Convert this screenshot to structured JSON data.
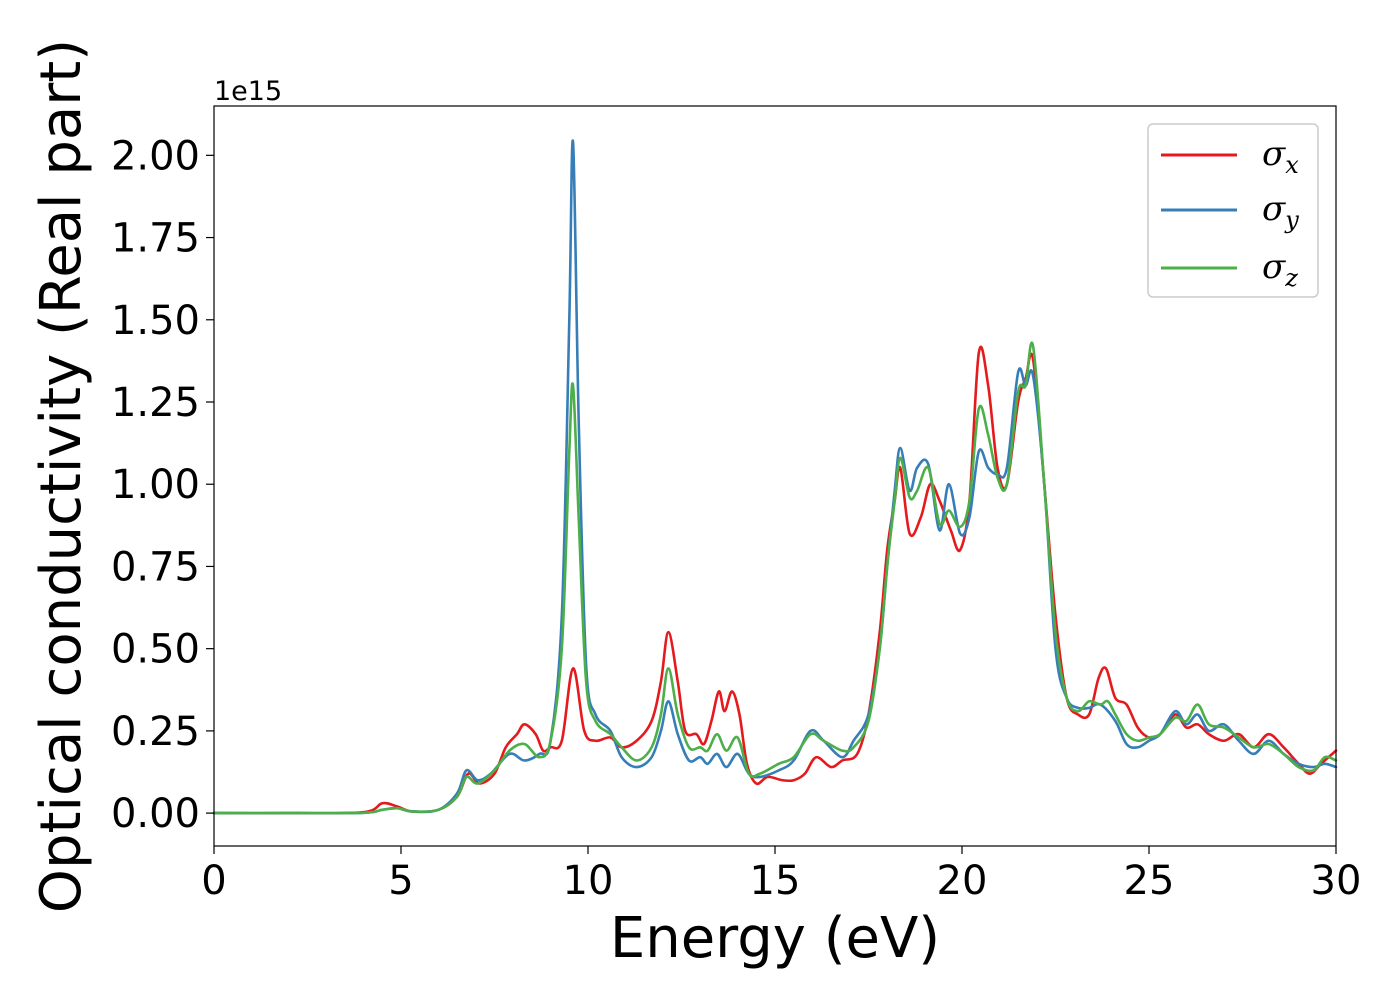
{
  "chart_data": {
    "type": "line",
    "title": "",
    "xlabel": "Energy (eV)",
    "ylabel": "Optical conductivity (Real part)",
    "y_offset_label": "1e15",
    "xlim": [
      0,
      30
    ],
    "ylim": [
      -0.1,
      2.15
    ],
    "x_ticks": [
      0,
      5,
      10,
      15,
      20,
      25,
      30
    ],
    "x_tick_labels": [
      "0",
      "5",
      "10",
      "15",
      "20",
      "25",
      "30"
    ],
    "y_ticks": [
      0,
      0.25,
      0.5,
      0.75,
      1.0,
      1.25,
      1.5,
      1.75,
      2.0
    ],
    "y_tick_labels": [
      "0.00",
      "0.25",
      "0.50",
      "0.75",
      "1.00",
      "1.25",
      "1.50",
      "1.75",
      "2.00"
    ],
    "grid": false,
    "legend_position": "top-right",
    "series": [
      {
        "name": "σx",
        "symbol": "σ",
        "subscript": "x",
        "color": "#e41a1c",
        "points": [
          [
            0,
            0
          ],
          [
            2,
            0
          ],
          [
            4,
            0.003
          ],
          [
            4.5,
            0.03
          ],
          [
            4.9,
            0.02
          ],
          [
            5.3,
            0.005
          ],
          [
            6,
            0.01
          ],
          [
            6.5,
            0.05
          ],
          [
            6.8,
            0.12
          ],
          [
            7.1,
            0.09
          ],
          [
            7.5,
            0.12
          ],
          [
            7.8,
            0.2
          ],
          [
            8.1,
            0.24
          ],
          [
            8.3,
            0.27
          ],
          [
            8.6,
            0.24
          ],
          [
            8.8,
            0.19
          ],
          [
            9.0,
            0.2
          ],
          [
            9.3,
            0.22
          ],
          [
            9.6,
            0.44
          ],
          [
            9.9,
            0.25
          ],
          [
            10.2,
            0.22
          ],
          [
            10.6,
            0.23
          ],
          [
            10.9,
            0.2
          ],
          [
            11.3,
            0.22
          ],
          [
            11.7,
            0.28
          ],
          [
            11.95,
            0.4
          ],
          [
            12.15,
            0.55
          ],
          [
            12.4,
            0.4
          ],
          [
            12.6,
            0.25
          ],
          [
            12.9,
            0.24
          ],
          [
            13.1,
            0.21
          ],
          [
            13.3,
            0.28
          ],
          [
            13.5,
            0.37
          ],
          [
            13.65,
            0.31
          ],
          [
            13.85,
            0.37
          ],
          [
            14.05,
            0.3
          ],
          [
            14.25,
            0.15
          ],
          [
            14.5,
            0.09
          ],
          [
            14.8,
            0.11
          ],
          [
            15.2,
            0.1
          ],
          [
            15.5,
            0.1
          ],
          [
            15.8,
            0.12
          ],
          [
            16.1,
            0.17
          ],
          [
            16.5,
            0.14
          ],
          [
            16.8,
            0.16
          ],
          [
            17.2,
            0.18
          ],
          [
            17.5,
            0.3
          ],
          [
            17.8,
            0.55
          ],
          [
            18.0,
            0.8
          ],
          [
            18.2,
            0.95
          ],
          [
            18.35,
            1.05
          ],
          [
            18.6,
            0.85
          ],
          [
            18.9,
            0.9
          ],
          [
            19.15,
            1.0
          ],
          [
            19.4,
            0.95
          ],
          [
            19.7,
            0.86
          ],
          [
            19.95,
            0.8
          ],
          [
            20.2,
            0.95
          ],
          [
            20.45,
            1.4
          ],
          [
            20.7,
            1.3
          ],
          [
            20.95,
            1.05
          ],
          [
            21.2,
            1.0
          ],
          [
            21.5,
            1.25
          ],
          [
            21.7,
            1.32
          ],
          [
            21.9,
            1.38
          ],
          [
            22.2,
            1.0
          ],
          [
            22.5,
            0.6
          ],
          [
            22.8,
            0.35
          ],
          [
            23.1,
            0.3
          ],
          [
            23.4,
            0.3
          ],
          [
            23.65,
            0.41
          ],
          [
            23.85,
            0.44
          ],
          [
            24.1,
            0.35
          ],
          [
            24.4,
            0.33
          ],
          [
            24.7,
            0.26
          ],
          [
            25.0,
            0.23
          ],
          [
            25.3,
            0.24
          ],
          [
            25.7,
            0.3
          ],
          [
            26.0,
            0.26
          ],
          [
            26.3,
            0.27
          ],
          [
            26.6,
            0.24
          ],
          [
            27.0,
            0.22
          ],
          [
            27.4,
            0.24
          ],
          [
            27.8,
            0.2
          ],
          [
            28.2,
            0.24
          ],
          [
            28.6,
            0.2
          ],
          [
            29.0,
            0.15
          ],
          [
            29.3,
            0.12
          ],
          [
            29.6,
            0.15
          ],
          [
            30.0,
            0.19
          ]
        ]
      },
      {
        "name": "σy",
        "symbol": "σ",
        "subscript": "y",
        "color": "#377eb8",
        "points": [
          [
            0,
            0
          ],
          [
            2,
            0
          ],
          [
            4,
            0.001
          ],
          [
            4.5,
            0.01
          ],
          [
            4.9,
            0.015
          ],
          [
            5.3,
            0.005
          ],
          [
            6,
            0.01
          ],
          [
            6.5,
            0.06
          ],
          [
            6.75,
            0.13
          ],
          [
            7.05,
            0.1
          ],
          [
            7.4,
            0.12
          ],
          [
            7.9,
            0.18
          ],
          [
            8.3,
            0.16
          ],
          [
            8.7,
            0.18
          ],
          [
            9.0,
            0.22
          ],
          [
            9.3,
            0.6
          ],
          [
            9.5,
            1.5
          ],
          [
            9.6,
            2.04
          ],
          [
            9.75,
            1.2
          ],
          [
            9.95,
            0.45
          ],
          [
            10.2,
            0.3
          ],
          [
            10.6,
            0.25
          ],
          [
            10.9,
            0.17
          ],
          [
            11.3,
            0.14
          ],
          [
            11.7,
            0.17
          ],
          [
            11.95,
            0.25
          ],
          [
            12.15,
            0.34
          ],
          [
            12.4,
            0.24
          ],
          [
            12.7,
            0.16
          ],
          [
            13.0,
            0.17
          ],
          [
            13.2,
            0.15
          ],
          [
            13.45,
            0.18
          ],
          [
            13.7,
            0.14
          ],
          [
            14.0,
            0.18
          ],
          [
            14.3,
            0.12
          ],
          [
            14.6,
            0.11
          ],
          [
            15.1,
            0.13
          ],
          [
            15.5,
            0.16
          ],
          [
            15.95,
            0.25
          ],
          [
            16.3,
            0.22
          ],
          [
            16.8,
            0.17
          ],
          [
            17.1,
            0.22
          ],
          [
            17.5,
            0.3
          ],
          [
            17.8,
            0.5
          ],
          [
            18.0,
            0.75
          ],
          [
            18.2,
            0.98
          ],
          [
            18.35,
            1.11
          ],
          [
            18.6,
            0.98
          ],
          [
            18.8,
            1.05
          ],
          [
            19.1,
            1.06
          ],
          [
            19.4,
            0.86
          ],
          [
            19.65,
            1.0
          ],
          [
            19.95,
            0.85
          ],
          [
            20.2,
            0.9
          ],
          [
            20.45,
            1.1
          ],
          [
            20.7,
            1.05
          ],
          [
            20.95,
            1.03
          ],
          [
            21.2,
            1.05
          ],
          [
            21.5,
            1.34
          ],
          [
            21.7,
            1.3
          ],
          [
            21.9,
            1.33
          ],
          [
            22.2,
            1.0
          ],
          [
            22.5,
            0.5
          ],
          [
            22.8,
            0.35
          ],
          [
            23.1,
            0.32
          ],
          [
            23.4,
            0.32
          ],
          [
            23.7,
            0.33
          ],
          [
            24.1,
            0.28
          ],
          [
            24.4,
            0.21
          ],
          [
            24.7,
            0.2
          ],
          [
            25.0,
            0.22
          ],
          [
            25.3,
            0.24
          ],
          [
            25.7,
            0.31
          ],
          [
            26.0,
            0.27
          ],
          [
            26.3,
            0.3
          ],
          [
            26.6,
            0.25
          ],
          [
            27.0,
            0.27
          ],
          [
            27.4,
            0.22
          ],
          [
            27.8,
            0.18
          ],
          [
            28.2,
            0.22
          ],
          [
            28.6,
            0.18
          ],
          [
            29.0,
            0.15
          ],
          [
            29.4,
            0.14
          ],
          [
            29.7,
            0.15
          ],
          [
            30.0,
            0.14
          ]
        ]
      },
      {
        "name": "σz",
        "symbol": "σ",
        "subscript": "z",
        "color": "#4daf4a",
        "points": [
          [
            0,
            0
          ],
          [
            2,
            0
          ],
          [
            4,
            0.001
          ],
          [
            4.5,
            0.01
          ],
          [
            4.9,
            0.015
          ],
          [
            5.3,
            0.005
          ],
          [
            6,
            0.01
          ],
          [
            6.5,
            0.05
          ],
          [
            6.75,
            0.11
          ],
          [
            7.05,
            0.09
          ],
          [
            7.5,
            0.13
          ],
          [
            7.9,
            0.19
          ],
          [
            8.3,
            0.21
          ],
          [
            8.7,
            0.17
          ],
          [
            9.0,
            0.22
          ],
          [
            9.3,
            0.5
          ],
          [
            9.5,
            1.1
          ],
          [
            9.6,
            1.3
          ],
          [
            9.75,
            0.9
          ],
          [
            9.95,
            0.4
          ],
          [
            10.2,
            0.28
          ],
          [
            10.6,
            0.24
          ],
          [
            10.9,
            0.2
          ],
          [
            11.3,
            0.16
          ],
          [
            11.7,
            0.2
          ],
          [
            11.95,
            0.3
          ],
          [
            12.15,
            0.44
          ],
          [
            12.4,
            0.3
          ],
          [
            12.7,
            0.2
          ],
          [
            13.0,
            0.2
          ],
          [
            13.2,
            0.19
          ],
          [
            13.45,
            0.24
          ],
          [
            13.7,
            0.19
          ],
          [
            14.0,
            0.23
          ],
          [
            14.3,
            0.12
          ],
          [
            14.6,
            0.12
          ],
          [
            15.1,
            0.15
          ],
          [
            15.5,
            0.17
          ],
          [
            15.95,
            0.24
          ],
          [
            16.3,
            0.22
          ],
          [
            16.8,
            0.19
          ],
          [
            17.1,
            0.2
          ],
          [
            17.5,
            0.28
          ],
          [
            17.8,
            0.5
          ],
          [
            18.0,
            0.75
          ],
          [
            18.2,
            0.95
          ],
          [
            18.35,
            1.08
          ],
          [
            18.6,
            0.96
          ],
          [
            18.8,
            0.98
          ],
          [
            19.1,
            1.05
          ],
          [
            19.4,
            0.88
          ],
          [
            19.65,
            0.92
          ],
          [
            19.95,
            0.87
          ],
          [
            20.2,
            0.95
          ],
          [
            20.45,
            1.23
          ],
          [
            20.7,
            1.15
          ],
          [
            20.95,
            1.02
          ],
          [
            21.2,
            1.0
          ],
          [
            21.5,
            1.28
          ],
          [
            21.7,
            1.3
          ],
          [
            21.9,
            1.42
          ],
          [
            22.2,
            1.0
          ],
          [
            22.5,
            0.55
          ],
          [
            22.8,
            0.35
          ],
          [
            23.1,
            0.31
          ],
          [
            23.4,
            0.34
          ],
          [
            23.7,
            0.33
          ],
          [
            23.9,
            0.34
          ],
          [
            24.1,
            0.3
          ],
          [
            24.4,
            0.24
          ],
          [
            24.7,
            0.22
          ],
          [
            25.0,
            0.23
          ],
          [
            25.3,
            0.24
          ],
          [
            25.7,
            0.29
          ],
          [
            26.0,
            0.28
          ],
          [
            26.3,
            0.33
          ],
          [
            26.6,
            0.27
          ],
          [
            27.0,
            0.26
          ],
          [
            27.4,
            0.23
          ],
          [
            27.8,
            0.2
          ],
          [
            28.2,
            0.21
          ],
          [
            28.6,
            0.18
          ],
          [
            29.0,
            0.14
          ],
          [
            29.4,
            0.13
          ],
          [
            29.7,
            0.17
          ],
          [
            30.0,
            0.16
          ]
        ]
      }
    ]
  }
}
